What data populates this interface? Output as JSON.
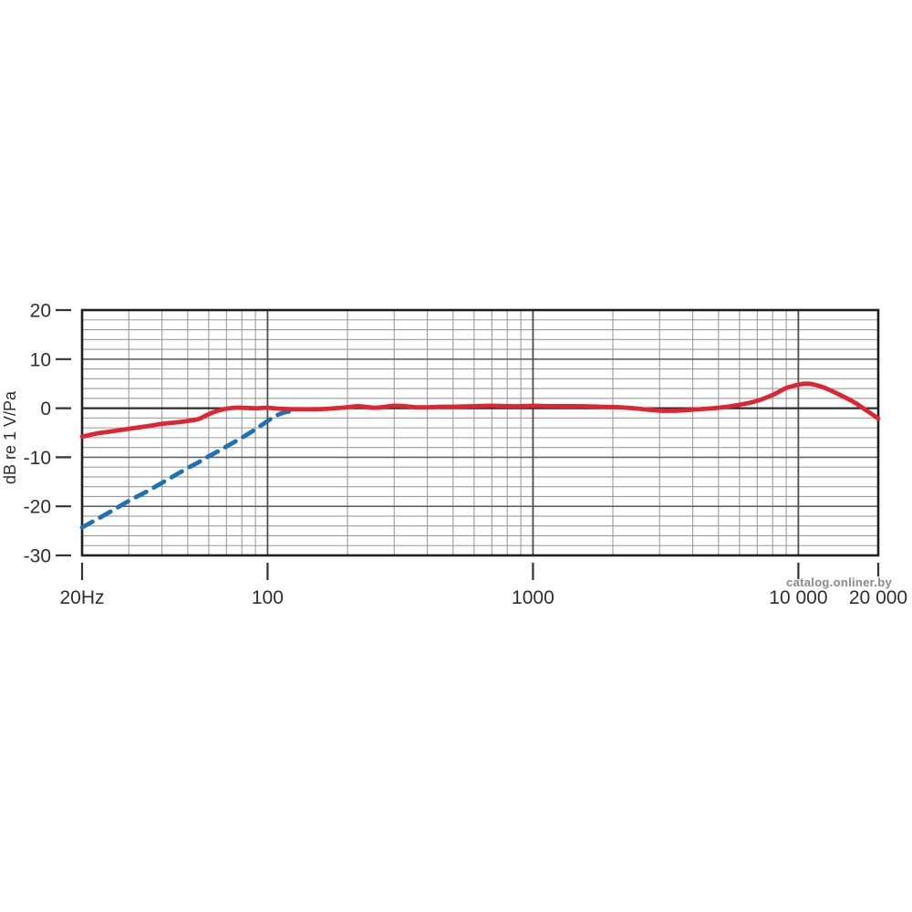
{
  "chart_data": {
    "type": "line",
    "title": "",
    "xlabel": "",
    "ylabel": "dB re 1 V/Pa",
    "x_scale": "log",
    "xlim": [
      20,
      20000
    ],
    "ylim": [
      -30,
      20
    ],
    "y_minor_step": 2,
    "y_major_step": 10,
    "grid": true,
    "legend_position": "none",
    "x_tick_labels": [
      {
        "value": 20,
        "label": "20Hz"
      },
      {
        "value": 100,
        "label": "100"
      },
      {
        "value": 1000,
        "label": "1000"
      },
      {
        "value": 10000,
        "label": "10 000"
      },
      {
        "value": 20000,
        "label": "20 000"
      }
    ],
    "y_tick_labels": [
      {
        "value": 20,
        "label": "20"
      },
      {
        "value": 10,
        "label": "10"
      },
      {
        "value": 0,
        "label": "0"
      },
      {
        "value": -10,
        "label": "-10"
      },
      {
        "value": -20,
        "label": "-20"
      },
      {
        "value": -30,
        "label": "-30"
      }
    ],
    "x_major_gridlines": [
      100,
      1000,
      10000
    ],
    "x_minor_gridlines": [
      30,
      40,
      50,
      60,
      70,
      80,
      90,
      200,
      300,
      400,
      500,
      600,
      700,
      800,
      900,
      2000,
      3000,
      4000,
      5000,
      6000,
      7000,
      8000,
      9000
    ],
    "series": [
      {
        "name": "frequency-response-main",
        "style": "solid",
        "color": "#df2531",
        "stroke_width": 4.8,
        "points": [
          [
            20,
            -5.8
          ],
          [
            23,
            -5.1
          ],
          [
            26,
            -4.7
          ],
          [
            30,
            -4.2
          ],
          [
            35,
            -3.7
          ],
          [
            40,
            -3.2
          ],
          [
            45,
            -2.9
          ],
          [
            50,
            -2.6
          ],
          [
            55,
            -2.2
          ],
          [
            58,
            -1.6
          ],
          [
            62,
            -0.9
          ],
          [
            66,
            -0.4
          ],
          [
            70,
            -0.1
          ],
          [
            75,
            0.1
          ],
          [
            80,
            0.1
          ],
          [
            90,
            0.0
          ],
          [
            100,
            0.1
          ],
          [
            110,
            -0.1
          ],
          [
            130,
            -0.2
          ],
          [
            150,
            -0.2
          ],
          [
            170,
            -0.1
          ],
          [
            200,
            0.2
          ],
          [
            220,
            0.4
          ],
          [
            250,
            0.1
          ],
          [
            270,
            0.2
          ],
          [
            300,
            0.5
          ],
          [
            330,
            0.4
          ],
          [
            360,
            0.2
          ],
          [
            400,
            0.2
          ],
          [
            450,
            0.3
          ],
          [
            500,
            0.3
          ],
          [
            600,
            0.4
          ],
          [
            700,
            0.5
          ],
          [
            800,
            0.4
          ],
          [
            900,
            0.4
          ],
          [
            1000,
            0.5
          ],
          [
            1200,
            0.4
          ],
          [
            1500,
            0.4
          ],
          [
            1800,
            0.3
          ],
          [
            2100,
            0.2
          ],
          [
            2500,
            -0.1
          ],
          [
            3000,
            -0.5
          ],
          [
            3500,
            -0.5
          ],
          [
            4000,
            -0.3
          ],
          [
            5000,
            0.1
          ],
          [
            6000,
            0.7
          ],
          [
            7000,
            1.5
          ],
          [
            8000,
            2.7
          ],
          [
            9000,
            4.1
          ],
          [
            10000,
            4.8
          ],
          [
            10800,
            5.0
          ],
          [
            11500,
            4.8
          ],
          [
            12500,
            4.2
          ],
          [
            14000,
            3.0
          ],
          [
            16000,
            1.4
          ],
          [
            18000,
            -0.4
          ],
          [
            20000,
            -2.1
          ]
        ]
      },
      {
        "name": "low-frequency-rolloff",
        "style": "dashed",
        "color": "#1e72b4",
        "stroke_width": 4.8,
        "dash": [
          13,
          9.5
        ],
        "points": [
          [
            20,
            -24.3
          ],
          [
            25,
            -21.4
          ],
          [
            30,
            -18.9
          ],
          [
            35,
            -17.0
          ],
          [
            40,
            -15.2
          ],
          [
            45,
            -13.6
          ],
          [
            50,
            -12.2
          ],
          [
            55,
            -11.0
          ],
          [
            60,
            -9.8
          ],
          [
            65,
            -8.8
          ],
          [
            70,
            -7.8
          ],
          [
            80,
            -6.0
          ],
          [
            90,
            -4.3
          ],
          [
            100,
            -2.6
          ],
          [
            108,
            -1.5
          ],
          [
            115,
            -0.9
          ],
          [
            123,
            -0.6
          ]
        ]
      }
    ]
  },
  "watermark": {
    "text": "catalog.onliner.by",
    "color": "#8d8d8d"
  },
  "colors": {
    "background": "#ffffff",
    "border": "#1f1f1f",
    "zero_line": "#2d2d2d",
    "grid_major_h": "#646464",
    "grid_major_v": "#4d4d4d",
    "grid_minor": "#9b9b9b",
    "tick": "#333333",
    "label": "#2e2e2e"
  }
}
